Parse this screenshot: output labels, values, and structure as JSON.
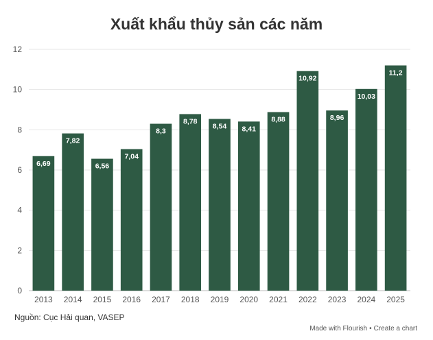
{
  "chart_data": {
    "type": "bar",
    "title": "Xuất khẩu thủy sản các năm",
    "categories": [
      "2013",
      "2014",
      "2015",
      "2016",
      "2017",
      "2018",
      "2019",
      "2020",
      "2021",
      "2022",
      "2023",
      "2024",
      "2025"
    ],
    "values": [
      6.69,
      7.82,
      6.56,
      7.04,
      8.3,
      8.78,
      8.54,
      8.41,
      8.88,
      10.92,
      8.96,
      10.03,
      11.2
    ],
    "value_labels": [
      "6,69",
      "7,82",
      "6,56",
      "7,04",
      "8,3",
      "8,78",
      "8,54",
      "8,41",
      "8,88",
      "10,92",
      "8,96",
      "10,03",
      "11,2"
    ],
    "ylim": [
      0,
      12
    ],
    "yticks": [
      "0",
      "2",
      "4",
      "6",
      "8",
      "10",
      "12"
    ],
    "grid": true,
    "bar_color": "#2e5a44"
  },
  "source": "Nguồn: Cục Hải quan, VASEP",
  "credit": {
    "made_with": "Made with Flourish",
    "separator": "•",
    "create": "Create a chart"
  }
}
